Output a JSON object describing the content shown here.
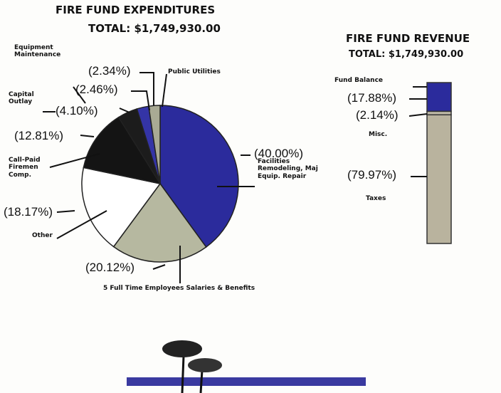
{
  "chart_data": [
    {
      "type": "pie",
      "title": "FIRE FUND EXPENDITURES",
      "subtitle": "TOTAL: $1,749,930.00",
      "categories": [
        "Facilities Remodeling, Maj Equip. Repair",
        "5 Full Time Employees Salaries & Benefits",
        "Other",
        "Call-Paid Firemen Comp.",
        "Capital Outlay",
        "Equipment Maintenance",
        "Public Utilities"
      ],
      "values": [
        40.0,
        20.12,
        18.17,
        12.81,
        4.1,
        2.46,
        2.34
      ],
      "value_labels": [
        "(40.00%)",
        "(20.12%)",
        "(18.17%)",
        "(12.81%)",
        "(4.10%)",
        "(2.46%)",
        "(2.34%)"
      ],
      "colors": [
        "#2b2b9c",
        "#b6b8a0",
        "#ffffff",
        "#141414",
        "#1c1c1c",
        "#3434a6",
        "#a9aa94"
      ]
    },
    {
      "type": "stacked_bar",
      "title": "FIRE FUND REVENUE",
      "subtitle": "TOTAL: $1,749,930.00",
      "categories": [
        "Fund Balance",
        "Misc.",
        "Taxes"
      ],
      "values": [
        17.88,
        2.14,
        79.97
      ],
      "value_labels": [
        "(17.88%)",
        "(2.14%)",
        "(79.97%)"
      ],
      "colors": [
        "#2b2b9c",
        "#bdb8a6",
        "#b9b39e"
      ]
    }
  ]
}
